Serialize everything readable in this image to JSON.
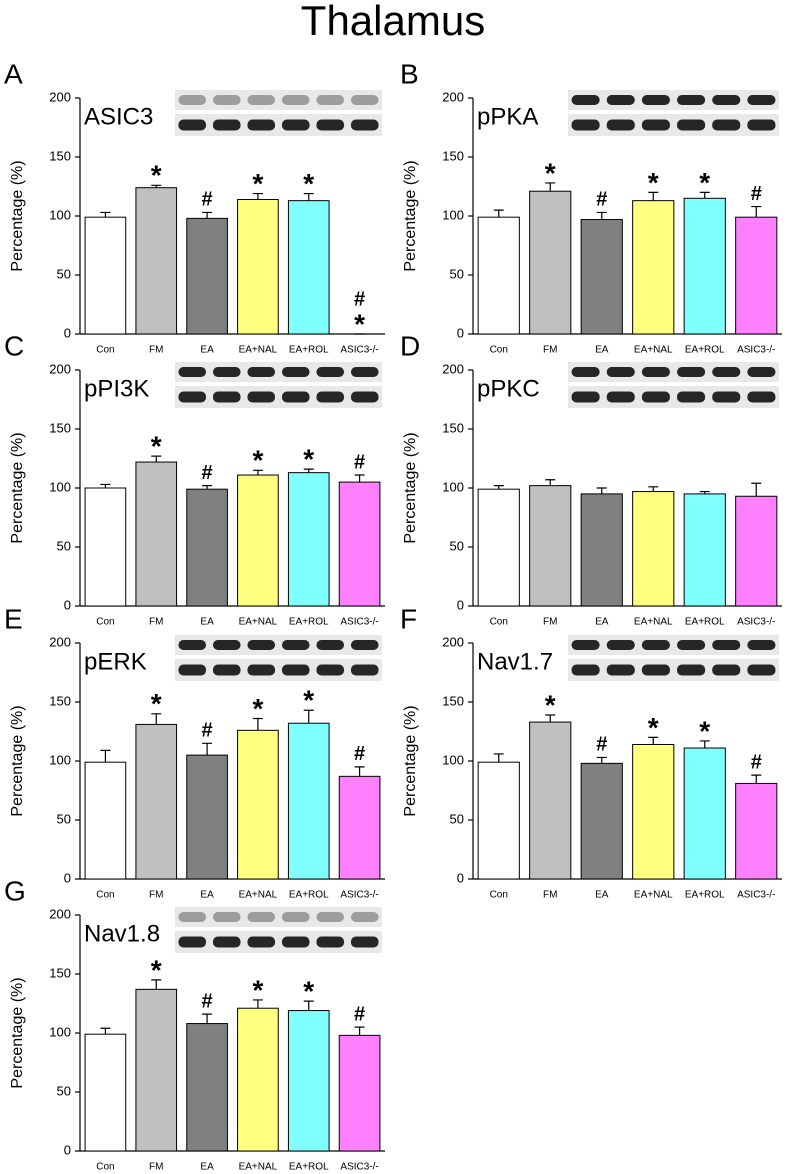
{
  "title": "Thalamus",
  "chart_data": [
    {
      "type": "bar",
      "panel_label": "A",
      "title": "ASIC3",
      "y_label": "Percentage (%)",
      "categories": [
        "Con",
        "FM",
        "EA",
        "EA+NAL",
        "EA+ROL",
        "ASIC3-/-"
      ],
      "values": [
        99,
        124,
        98,
        114,
        113,
        0
      ],
      "errors": [
        4,
        2,
        5,
        5,
        6,
        0
      ],
      "annotations": [
        null,
        [
          "*"
        ],
        [
          "#"
        ],
        [
          "*"
        ],
        [
          "*"
        ],
        [
          "#",
          "*"
        ]
      ],
      "colors": [
        "#ffffff",
        "#c0c0c0",
        "#808080",
        "#ffff80",
        "#80ffff",
        "#ff80ff"
      ],
      "ylim": [
        0,
        200
      ],
      "yticks": [
        0,
        50,
        100,
        150,
        200
      ]
    },
    {
      "type": "bar",
      "panel_label": "B",
      "title": "pPKA",
      "y_label": "Percentage (%)",
      "categories": [
        "Con",
        "FM",
        "EA",
        "EA+NAL",
        "EA+ROL",
        "ASIC3-/-"
      ],
      "values": [
        99,
        121,
        97,
        113,
        115,
        99
      ],
      "errors": [
        6,
        7,
        6,
        7,
        5,
        9
      ],
      "annotations": [
        null,
        [
          "*"
        ],
        [
          "#"
        ],
        [
          "*"
        ],
        [
          "*"
        ],
        [
          "#"
        ]
      ],
      "colors": [
        "#ffffff",
        "#c0c0c0",
        "#808080",
        "#ffff80",
        "#80ffff",
        "#ff80ff"
      ],
      "ylim": [
        0,
        200
      ],
      "yticks": [
        0,
        50,
        100,
        150,
        200
      ]
    },
    {
      "type": "bar",
      "panel_label": "C",
      "title": "pPI3K",
      "y_label": "Percentage (%)",
      "categories": [
        "Con",
        "FM",
        "EA",
        "EA+NAL",
        "EA+ROL",
        "ASIC3-/-"
      ],
      "values": [
        100,
        122,
        99,
        111,
        113,
        105
      ],
      "errors": [
        3,
        5,
        3,
        4,
        3,
        6
      ],
      "annotations": [
        null,
        [
          "*"
        ],
        [
          "#"
        ],
        [
          "*"
        ],
        [
          "*"
        ],
        [
          "#"
        ]
      ],
      "colors": [
        "#ffffff",
        "#c0c0c0",
        "#808080",
        "#ffff80",
        "#80ffff",
        "#ff80ff"
      ],
      "ylim": [
        0,
        200
      ],
      "yticks": [
        0,
        50,
        100,
        150,
        200
      ]
    },
    {
      "type": "bar",
      "panel_label": "D",
      "title": "pPKC",
      "y_label": "Percentage (%)",
      "categories": [
        "Con",
        "FM",
        "EA",
        "EA+NAL",
        "EA+ROL",
        "ASIC3-/-"
      ],
      "values": [
        99,
        102,
        95,
        97,
        95,
        93
      ],
      "errors": [
        3,
        5,
        5,
        4,
        2,
        11
      ],
      "colors": [
        "#ffffff",
        "#c0c0c0",
        "#808080",
        "#ffff80",
        "#80ffff",
        "#ff80ff"
      ],
      "ylim": [
        0,
        200
      ],
      "yticks": [
        0,
        50,
        100,
        150,
        200
      ]
    },
    {
      "type": "bar",
      "panel_label": "E",
      "title": "pERK",
      "y_label": "Percentage (%)",
      "categories": [
        "Con",
        "FM",
        "EA",
        "EA+NAL",
        "EA+ROL",
        "ASIC3-/-"
      ],
      "values": [
        99,
        131,
        105,
        126,
        132,
        87
      ],
      "errors": [
        10,
        9,
        10,
        10,
        11,
        8
      ],
      "annotations": [
        null,
        [
          "*"
        ],
        [
          "#"
        ],
        [
          "*"
        ],
        [
          "*"
        ],
        [
          "#"
        ]
      ],
      "colors": [
        "#ffffff",
        "#c0c0c0",
        "#808080",
        "#ffff80",
        "#80ffff",
        "#ff80ff"
      ],
      "ylim": [
        0,
        200
      ],
      "yticks": [
        0,
        50,
        100,
        150,
        200
      ]
    },
    {
      "type": "bar",
      "panel_label": "F",
      "title": "Nav1.7",
      "y_label": "Percentage (%)",
      "categories": [
        "Con",
        "FM",
        "EA",
        "EA+NAL",
        "EA+ROL",
        "ASIC3-/-"
      ],
      "values": [
        99,
        133,
        98,
        114,
        111,
        81
      ],
      "errors": [
        7,
        6,
        5,
        6,
        6,
        7
      ],
      "annotations": [
        null,
        [
          "*"
        ],
        [
          "#"
        ],
        [
          "*"
        ],
        [
          "*"
        ],
        [
          "#"
        ]
      ],
      "colors": [
        "#ffffff",
        "#c0c0c0",
        "#808080",
        "#ffff80",
        "#80ffff",
        "#ff80ff"
      ],
      "ylim": [
        0,
        200
      ],
      "yticks": [
        0,
        50,
        100,
        150,
        200
      ]
    },
    {
      "type": "bar",
      "panel_label": "G",
      "title": "Nav1.8",
      "y_label": "Percentage (%)",
      "categories": [
        "Con",
        "FM",
        "EA",
        "EA+NAL",
        "EA+ROL",
        "ASIC3-/-"
      ],
      "values": [
        99,
        137,
        108,
        121,
        119,
        98
      ],
      "errors": [
        5,
        8,
        8,
        7,
        8,
        7
      ],
      "annotations": [
        null,
        [
          "*"
        ],
        [
          "#"
        ],
        [
          "*"
        ],
        [
          "*"
        ],
        [
          "#"
        ]
      ],
      "colors": [
        "#ffffff",
        "#c0c0c0",
        "#808080",
        "#ffff80",
        "#80ffff",
        "#ff80ff"
      ],
      "ylim": [
        0,
        200
      ],
      "yticks": [
        0,
        50,
        100,
        150,
        200
      ]
    }
  ]
}
